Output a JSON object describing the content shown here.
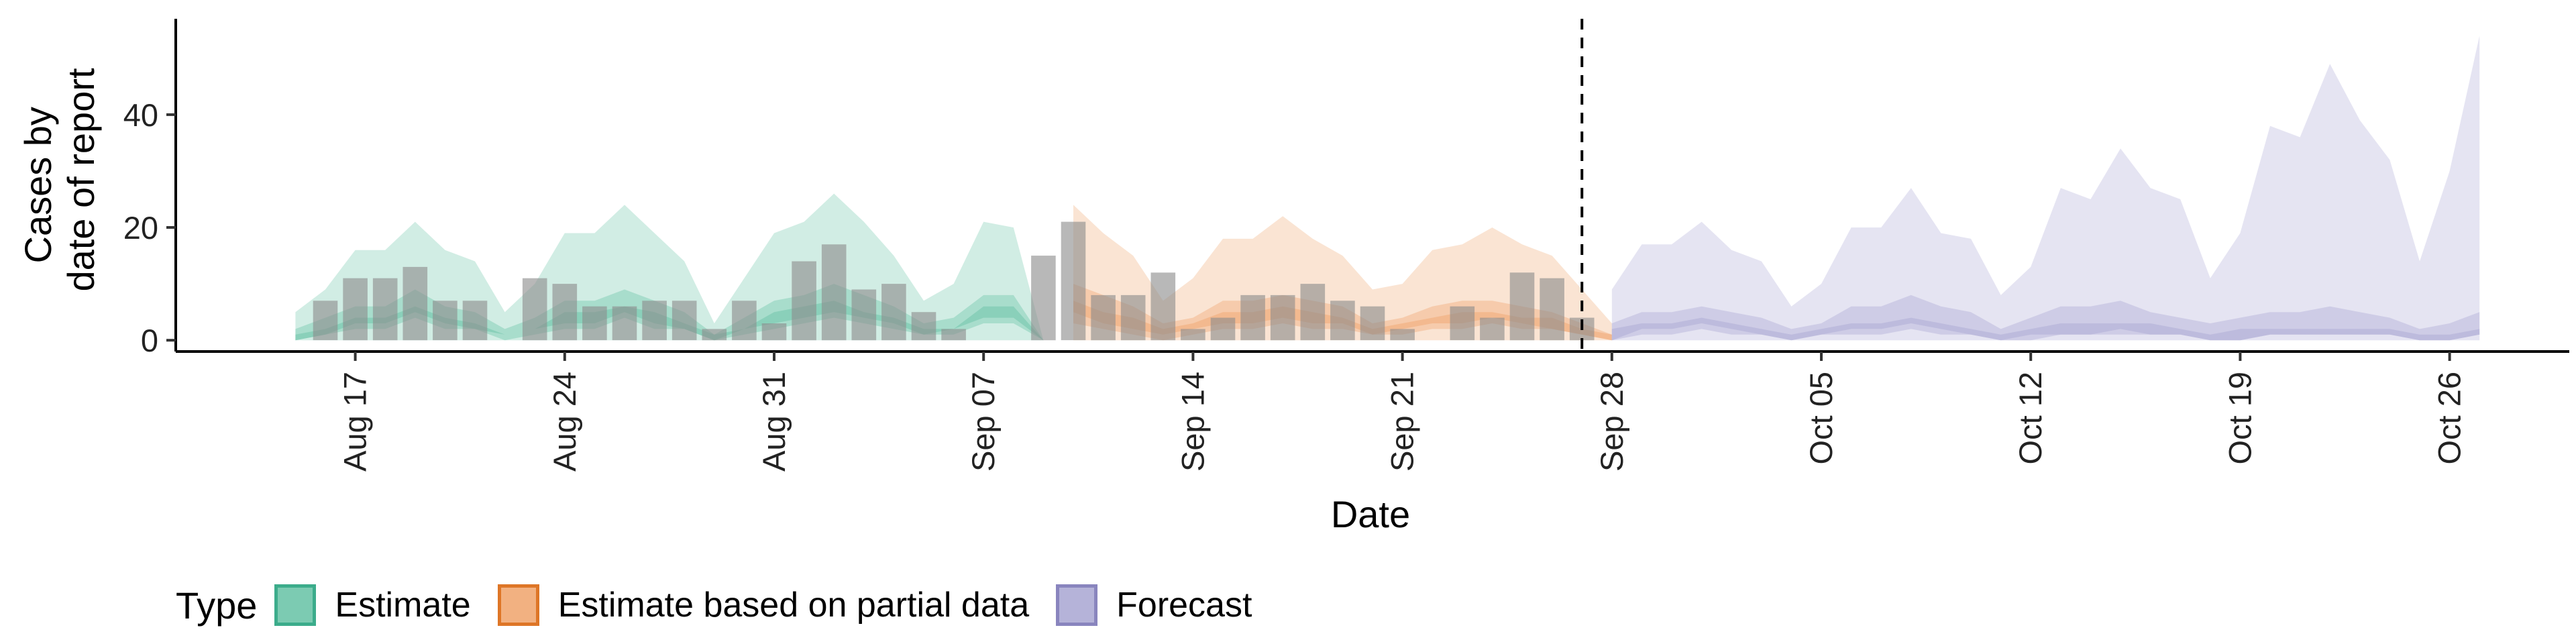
{
  "chart_data": {
    "type": "area",
    "xlabel": "Date",
    "ylabel_lines": [
      "Cases by",
      "date of report"
    ],
    "ylim": [
      -2,
      57
    ],
    "xlim": [
      "2020-08-11",
      "2020-10-30"
    ],
    "yticks": [
      0,
      20,
      40
    ],
    "xticks": [
      {
        "date": "2020-08-17",
        "label": "Aug 17"
      },
      {
        "date": "2020-08-24",
        "label": "Aug 24"
      },
      {
        "date": "2020-08-31",
        "label": "Aug 31"
      },
      {
        "date": "2020-09-07",
        "label": "Sep 07"
      },
      {
        "date": "2020-09-14",
        "label": "Sep 14"
      },
      {
        "date": "2020-09-21",
        "label": "Sep 21"
      },
      {
        "date": "2020-09-28",
        "label": "Sep 28"
      },
      {
        "date": "2020-10-05",
        "label": "Oct 05"
      },
      {
        "date": "2020-10-12",
        "label": "Oct 12"
      },
      {
        "date": "2020-10-19",
        "label": "Oct 19"
      },
      {
        "date": "2020-10-26",
        "label": "Oct 26"
      }
    ],
    "forecast_start_line": "2020-09-27",
    "legend": {
      "title": "Type",
      "position": "bottom",
      "items": [
        {
          "label": "Estimate",
          "fill": "#66c2a5",
          "stroke": "#1b9e77"
        },
        {
          "label": "Estimate based on partial data",
          "fill": "#f0a46c",
          "stroke": "#d95f02"
        },
        {
          "label": "Forecast",
          "fill": "#a9a6d3",
          "stroke": "#7570b3"
        }
      ]
    },
    "bar_color": "#8c8c8c",
    "bars": {
      "x": [
        "2020-08-16",
        "2020-08-17",
        "2020-08-18",
        "2020-08-19",
        "2020-08-20",
        "2020-08-21",
        "2020-08-22",
        "2020-08-23",
        "2020-08-24",
        "2020-08-25",
        "2020-08-26",
        "2020-08-27",
        "2020-08-28",
        "2020-08-29",
        "2020-08-30",
        "2020-08-31",
        "2020-09-01",
        "2020-09-02",
        "2020-09-03",
        "2020-09-04",
        "2020-09-05",
        "2020-09-06",
        "2020-09-07",
        "2020-09-08",
        "2020-09-09",
        "2020-09-10",
        "2020-09-11",
        "2020-09-12",
        "2020-09-13",
        "2020-09-14",
        "2020-09-15",
        "2020-09-16",
        "2020-09-17",
        "2020-09-18",
        "2020-09-19",
        "2020-09-20",
        "2020-09-21",
        "2020-09-22",
        "2020-09-23",
        "2020-09-24",
        "2020-09-25",
        "2020-09-26",
        "2020-09-27"
      ],
      "values": [
        7,
        11,
        11,
        13,
        7,
        7,
        0,
        11,
        10,
        6,
        6,
        7,
        7,
        2,
        7,
        3,
        14,
        17,
        9,
        10,
        5,
        2,
        0,
        0,
        15,
        21,
        8,
        8,
        12,
        2,
        4,
        8,
        8,
        10,
        7,
        6,
        2,
        0,
        6,
        4,
        12,
        11,
        4
      ]
    },
    "series": [
      {
        "name": "Estimate",
        "fill": "#66c2a5",
        "stroke": "#1b9e77",
        "x": [
          "2020-08-15",
          "2020-08-16",
          "2020-08-17",
          "2020-08-18",
          "2020-08-19",
          "2020-08-20",
          "2020-08-21",
          "2020-08-22",
          "2020-08-23",
          "2020-08-24",
          "2020-08-25",
          "2020-08-26",
          "2020-08-27",
          "2020-08-28",
          "2020-08-29",
          "2020-08-30",
          "2020-08-31",
          "2020-09-01",
          "2020-09-02",
          "2020-09-03",
          "2020-09-04",
          "2020-09-05",
          "2020-09-06",
          "2020-09-07",
          "2020-09-08",
          "2020-09-09"
        ],
        "upper90": [
          5,
          9,
          16,
          16,
          21,
          16,
          14,
          5,
          10,
          19,
          19,
          24,
          19,
          14,
          3,
          11,
          19,
          21,
          26,
          21,
          15,
          7,
          10,
          21,
          20,
          0
        ],
        "lower90": [
          0,
          0,
          0,
          0,
          0,
          0,
          0,
          0,
          0,
          0,
          0,
          0,
          0,
          0,
          0,
          0,
          0,
          0,
          0,
          0,
          0,
          0,
          0,
          0,
          0,
          0
        ],
        "upper50": [
          2,
          4,
          6,
          6,
          9,
          6,
          5,
          2,
          4,
          7,
          7,
          9,
          7,
          5,
          1,
          4,
          7,
          8,
          10,
          8,
          6,
          3,
          4,
          8,
          8,
          0
        ],
        "lower50": [
          0,
          1,
          2,
          2,
          4,
          2,
          2,
          0,
          1,
          2,
          2,
          4,
          2,
          2,
          0,
          1,
          2,
          3,
          4,
          3,
          2,
          1,
          1,
          3,
          3,
          0
        ],
        "upper20": [
          1,
          2,
          4,
          4,
          6,
          4,
          3,
          1,
          2,
          5,
          5,
          6,
          5,
          3,
          1,
          2,
          5,
          6,
          7,
          5,
          4,
          2,
          2,
          6,
          6,
          0
        ],
        "lower20": [
          0,
          1,
          3,
          3,
          5,
          3,
          2,
          1,
          2,
          3,
          3,
          5,
          3,
          2,
          0,
          2,
          3,
          4,
          5,
          4,
          3,
          1,
          2,
          4,
          4,
          0
        ]
      },
      {
        "name": "Estimate based on partial data",
        "fill": "#f0a46c",
        "stroke": "#d95f02",
        "x": [
          "2020-09-10",
          "2020-09-11",
          "2020-09-12",
          "2020-09-13",
          "2020-09-14",
          "2020-09-15",
          "2020-09-16",
          "2020-09-17",
          "2020-09-18",
          "2020-09-19",
          "2020-09-20",
          "2020-09-21",
          "2020-09-22",
          "2020-09-23",
          "2020-09-24",
          "2020-09-25",
          "2020-09-26",
          "2020-09-27",
          "2020-09-28"
        ],
        "upper90": [
          24,
          19,
          15,
          7,
          11,
          18,
          18,
          22,
          18,
          15,
          9,
          10,
          16,
          17,
          20,
          17,
          15,
          9,
          3
        ],
        "lower90": [
          0,
          0,
          0,
          0,
          0,
          0,
          0,
          0,
          0,
          0,
          0,
          0,
          0,
          0,
          0,
          0,
          0,
          0,
          0
        ],
        "upper50": [
          10,
          8,
          6,
          3,
          4,
          7,
          7,
          8,
          7,
          6,
          3,
          4,
          6,
          7,
          7,
          6,
          5,
          3,
          1
        ],
        "lower50": [
          3,
          2,
          1,
          0,
          1,
          2,
          2,
          3,
          2,
          2,
          1,
          1,
          2,
          2,
          3,
          2,
          2,
          1,
          0
        ],
        "upper20": [
          7,
          5,
          4,
          2,
          3,
          5,
          5,
          6,
          5,
          4,
          2,
          3,
          4,
          5,
          5,
          4,
          4,
          2,
          1
        ],
        "lower20": [
          5,
          3,
          2,
          1,
          2,
          3,
          3,
          4,
          3,
          3,
          1,
          2,
          3,
          3,
          4,
          3,
          2,
          1,
          0
        ]
      },
      {
        "name": "Forecast",
        "fill": "#a9a6d3",
        "stroke": "#7570b3",
        "x": [
          "2020-09-28",
          "2020-09-29",
          "2020-09-30",
          "2020-10-01",
          "2020-10-02",
          "2020-10-03",
          "2020-10-04",
          "2020-10-05",
          "2020-10-06",
          "2020-10-07",
          "2020-10-08",
          "2020-10-09",
          "2020-10-10",
          "2020-10-11",
          "2020-10-12",
          "2020-10-13",
          "2020-10-14",
          "2020-10-15",
          "2020-10-16",
          "2020-10-17",
          "2020-10-18",
          "2020-10-19",
          "2020-10-20",
          "2020-10-21",
          "2020-10-22",
          "2020-10-23",
          "2020-10-24",
          "2020-10-25",
          "2020-10-26",
          "2020-10-27"
        ],
        "upper90": [
          9,
          17,
          17,
          21,
          16,
          14,
          6,
          10,
          20,
          20,
          27,
          19,
          18,
          8,
          13,
          27,
          25,
          34,
          27,
          25,
          11,
          19,
          38,
          36,
          49,
          39,
          32,
          14,
          30,
          54
        ],
        "lower90": [
          0,
          0,
          0,
          0,
          0,
          0,
          0,
          0,
          0,
          0,
          0,
          0,
          0,
          0,
          0,
          0,
          0,
          0,
          0,
          0,
          0,
          0,
          0,
          0,
          0,
          0,
          0,
          0,
          0,
          0
        ],
        "upper50": [
          3,
          5,
          5,
          6,
          5,
          4,
          2,
          3,
          6,
          6,
          8,
          6,
          5,
          2,
          4,
          6,
          6,
          7,
          5,
          4,
          3,
          4,
          5,
          5,
          6,
          5,
          4,
          2,
          3,
          5
        ],
        "lower50": [
          0,
          1,
          1,
          2,
          1,
          1,
          0,
          1,
          1,
          1,
          2,
          1,
          1,
          0,
          0,
          1,
          1,
          1,
          1,
          1,
          0,
          0,
          1,
          1,
          1,
          1,
          1,
          0,
          0,
          1
        ],
        "upper20": [
          2,
          3,
          3,
          4,
          3,
          2,
          1,
          2,
          3,
          3,
          4,
          3,
          2,
          1,
          2,
          3,
          3,
          3,
          3,
          2,
          1,
          2,
          2,
          2,
          2,
          2,
          2,
          1,
          1,
          2
        ],
        "lower20": [
          0,
          2,
          2,
          3,
          2,
          1,
          0,
          1,
          2,
          2,
          3,
          2,
          1,
          0,
          1,
          1,
          1,
          2,
          1,
          1,
          0,
          0,
          1,
          1,
          1,
          1,
          1,
          0,
          0,
          1
        ]
      }
    ]
  }
}
